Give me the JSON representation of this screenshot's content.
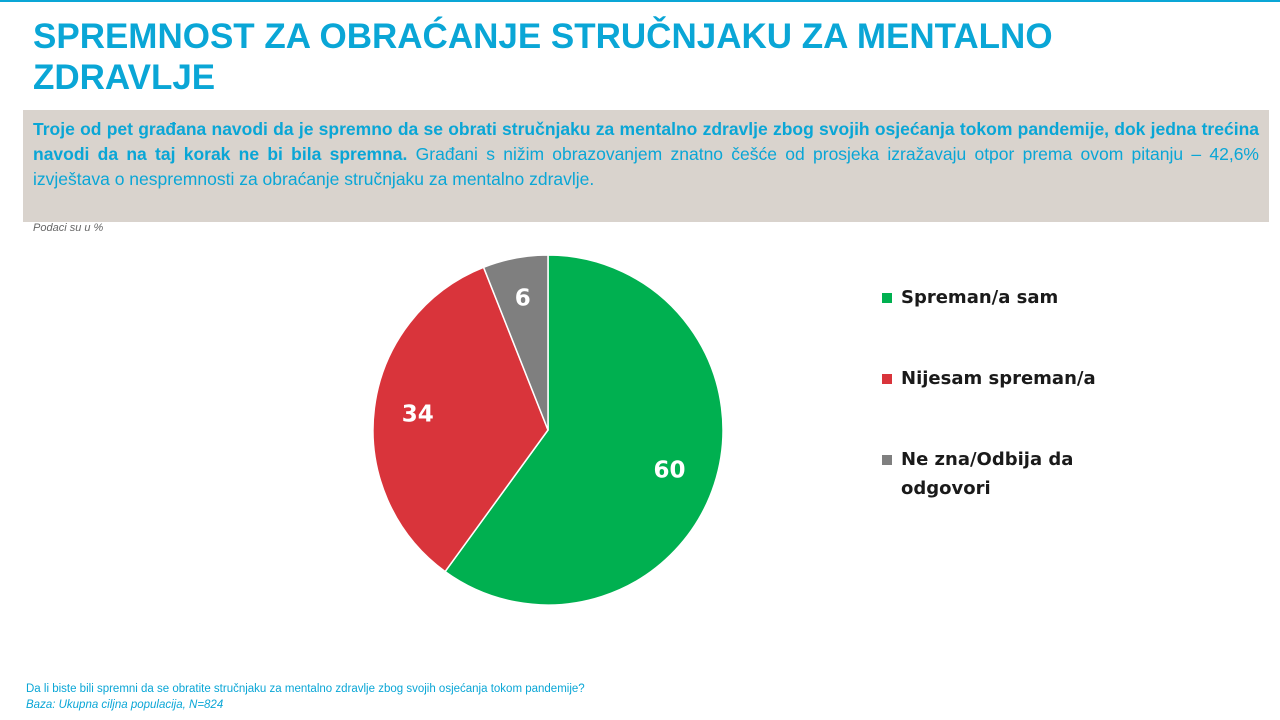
{
  "title": "SPREMNOST ZA OBRAĆANJE STRUČNJAKU ZA MENTALNO ZDRAVLJE",
  "summary": {
    "lead": "Troje od pet građana navodi da je spremno da se obrati stručnjaku za mentalno zdravlje zbog svojih osjećanja tokom pandemije, dok jedna trećina navodi da na taj korak ne bi bila spremna.",
    "body": " Građani s nižim obrazovanjem znatno češće od prosjeka izražavaju otpor prema ovom pitanju – 42,6% izvještava o nespremnosti za obraćanje stručnjaku za mentalno zdravlje."
  },
  "units_note": "Podaci su u %",
  "chart_data": {
    "type": "pie",
    "title": "",
    "slices": [
      {
        "label": "Spreman/a sam",
        "value": 60,
        "color": "#00b050"
      },
      {
        "label": "Nijesam spreman/a",
        "value": 34,
        "color": "#d9343b"
      },
      {
        "label": "Ne zna/Odbija da odgovori",
        "value": 6,
        "color": "#7f7f7f"
      }
    ],
    "start": "12 o'clock",
    "direction": "clockwise",
    "legend_position": "right"
  },
  "legend": {
    "items": [
      {
        "label": "Spreman/a sam"
      },
      {
        "label": "Nijesam spreman/a"
      },
      {
        "label": "Ne zna/Odbija da odgovori"
      }
    ]
  },
  "footnote": {
    "question": "Da li biste bili spremni da se obratite stručnjaku za mentalno zdravlje zbog svojih osjećanja tokom pandemije?",
    "base": "Baza: Ukupna ciljna populacija, N=824"
  }
}
